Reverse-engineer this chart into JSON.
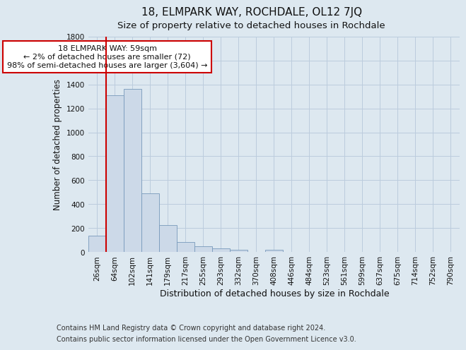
{
  "title": "18, ELMPARK WAY, ROCHDALE, OL12 7JQ",
  "subtitle": "Size of property relative to detached houses in Rochdale",
  "xlabel": "Distribution of detached houses by size in Rochdale",
  "ylabel": "Number of detached properties",
  "bar_labels": [
    "26sqm",
    "64sqm",
    "102sqm",
    "141sqm",
    "179sqm",
    "217sqm",
    "255sqm",
    "293sqm",
    "332sqm",
    "370sqm",
    "408sqm",
    "446sqm",
    "484sqm",
    "523sqm",
    "561sqm",
    "599sqm",
    "637sqm",
    "675sqm",
    "714sqm",
    "752sqm",
    "790sqm"
  ],
  "bar_values": [
    135,
    1310,
    1365,
    490,
    225,
    82,
    50,
    28,
    20,
    0,
    20,
    0,
    0,
    0,
    0,
    0,
    0,
    0,
    0,
    0,
    0
  ],
  "bar_color": "#ccd9e8",
  "bar_edge_color": "#7799bb",
  "vline_color": "#cc0000",
  "annotation_text": "18 ELMPARK WAY: 59sqm\n← 2% of detached houses are smaller (72)\n98% of semi-detached houses are larger (3,604) →",
  "annotation_box_color": "#ffffff",
  "annotation_box_edge_color": "#cc0000",
  "ylim": [
    0,
    1800
  ],
  "yticks": [
    0,
    200,
    400,
    600,
    800,
    1000,
    1200,
    1400,
    1600,
    1800
  ],
  "grid_color": "#bbccdd",
  "fig_bg_color": "#dde8f0",
  "plot_bg_color": "#dde8f0",
  "footer_line1": "Contains HM Land Registry data © Crown copyright and database right 2024.",
  "footer_line2": "Contains public sector information licensed under the Open Government Licence v3.0.",
  "title_fontsize": 11,
  "subtitle_fontsize": 9.5,
  "xlabel_fontsize": 9,
  "ylabel_fontsize": 8.5,
  "tick_fontsize": 7.5,
  "annotation_fontsize": 8,
  "footer_fontsize": 7
}
